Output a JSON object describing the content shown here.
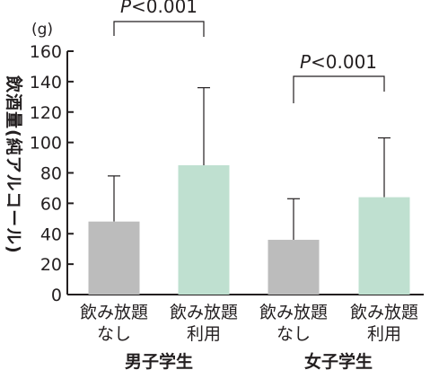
{
  "chart_data": {
    "type": "bar",
    "ylabel": "飲酒量(純アルコール)",
    "unit": "(g)",
    "ylim": [
      0,
      160
    ],
    "yticks": [
      "0",
      "20",
      "40",
      "60",
      "80",
      "100",
      "120",
      "140",
      "160"
    ],
    "grid": false,
    "groups": [
      {
        "label": "男子学生",
        "bars": [
          {
            "line1": "飲み放題",
            "line2": "なし",
            "value": 48,
            "error_upper": 78,
            "color": "#bcbcbc"
          },
          {
            "line1": "飲み放題",
            "line2": "利用",
            "value": 85,
            "error_upper": 136,
            "color": "#bfe0d0"
          }
        ],
        "significance": {
          "p": "P",
          "rest": "<0.001"
        }
      },
      {
        "label": "女子学生",
        "bars": [
          {
            "line1": "飲み放題",
            "line2": "なし",
            "value": 36,
            "error_upper": 63,
            "color": "#bcbcbc"
          },
          {
            "line1": "飲み放題",
            "line2": "利用",
            "value": 64,
            "error_upper": 103,
            "color": "#bfe0d0"
          }
        ],
        "significance": {
          "p": "P",
          "rest": "<0.001"
        }
      }
    ]
  }
}
